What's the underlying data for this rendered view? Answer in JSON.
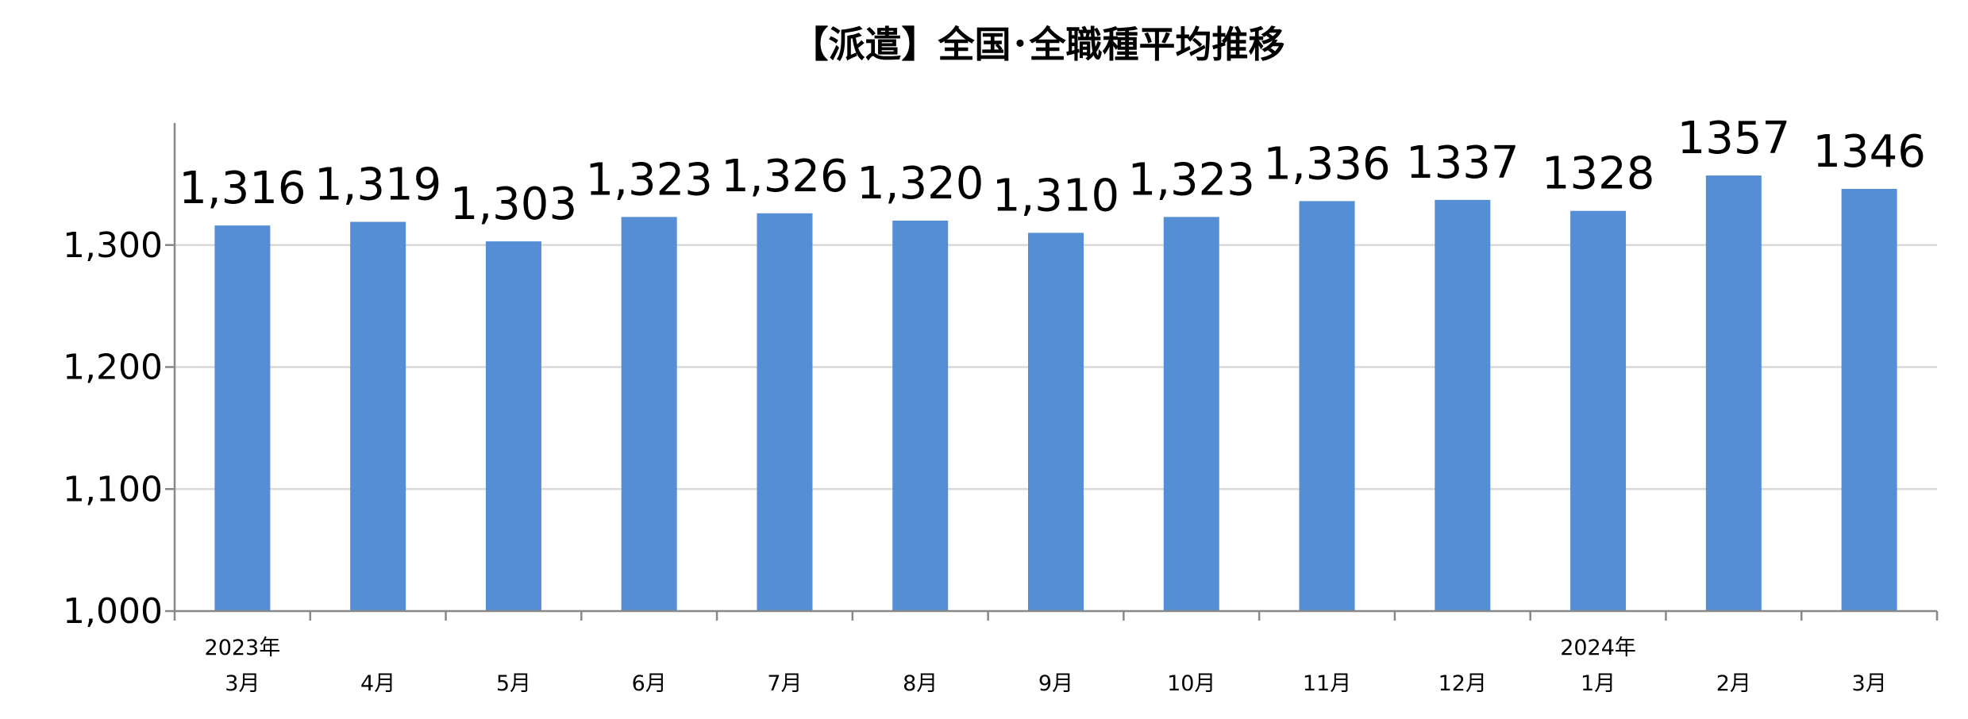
{
  "chart_data": {
    "type": "bar",
    "title": "【派遣】全国･全職種平均推移",
    "categories": [
      "3月",
      "4月",
      "5月",
      "6月",
      "7月",
      "8月",
      "9月",
      "10月",
      "11月",
      "12月",
      "1月",
      "2月",
      "3月"
    ],
    "year_labels": [
      "2023年",
      "",
      "",
      "",
      "",
      "",
      "",
      "",
      "",
      "",
      "2024年",
      "",
      ""
    ],
    "values": [
      1316,
      1319,
      1303,
      1323,
      1326,
      1320,
      1310,
      1323,
      1336,
      1337,
      1328,
      1357,
      1346
    ],
    "data_labels": [
      "1,316",
      "1,319",
      "1,303",
      "1,323",
      "1,326",
      "1,320",
      "1,310",
      "1,323",
      "1,336",
      "1337",
      "1328",
      "1357",
      "1346"
    ],
    "ylim": [
      1000,
      1400
    ],
    "yticks": [
      1000,
      1100,
      1200,
      1300
    ],
    "ytick_labels": [
      "1,000",
      "1,100",
      "1,200",
      "1,300"
    ],
    "grid": true,
    "legend": "none",
    "bar_color": "#558ed5"
  }
}
